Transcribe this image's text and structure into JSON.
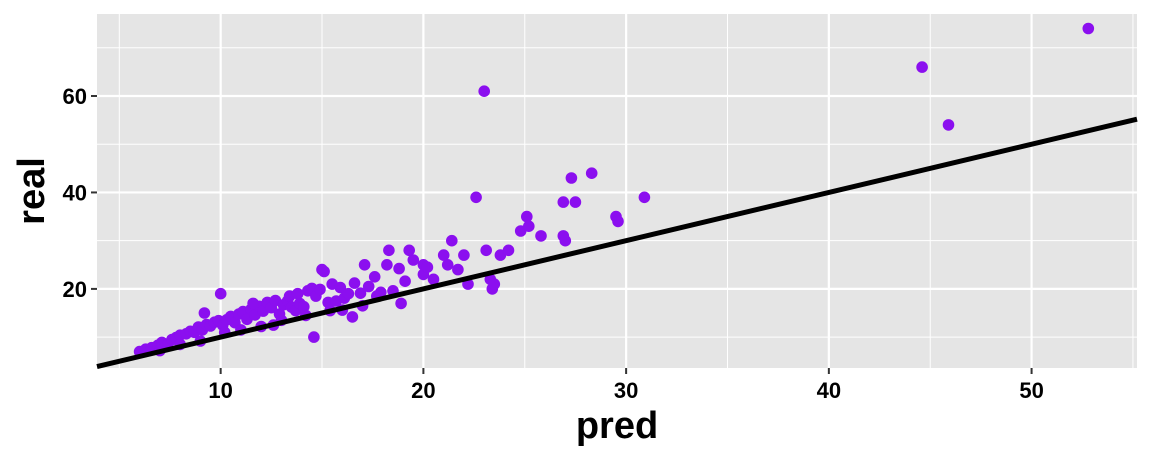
{
  "chart_data": {
    "type": "scatter",
    "xlabel": "pred",
    "ylabel": "real",
    "xlim": [
      3.9,
      55.2
    ],
    "ylim": [
      3.6,
      77.0
    ],
    "x_ticks": [
      10,
      20,
      30,
      40,
      50
    ],
    "y_ticks": [
      20,
      40,
      60
    ],
    "grid": true,
    "colors": {
      "points": "#8B0FEF",
      "line": "#000000",
      "panel": "#E5E5E5",
      "grid": "#FFFFFF"
    },
    "reference_line": {
      "slope": 1,
      "intercept": 0
    },
    "series": [
      {
        "points": [
          [
            6.0,
            7.0
          ],
          [
            6.3,
            7.5
          ],
          [
            6.6,
            7.8
          ],
          [
            6.9,
            8.3
          ],
          [
            7.1,
            8.9
          ],
          [
            7.4,
            8.6
          ],
          [
            7.6,
            9.5
          ],
          [
            7.8,
            9.9
          ],
          [
            8.0,
            10.4
          ],
          [
            8.3,
            10.7
          ],
          [
            8.5,
            11.2
          ],
          [
            8.7,
            11.0
          ],
          [
            8.9,
            12.1
          ],
          [
            9.1,
            11.5
          ],
          [
            9.3,
            12.6
          ],
          [
            9.5,
            12.3
          ],
          [
            9.7,
            13.1
          ],
          [
            9.9,
            13.4
          ],
          [
            10.1,
            12.5
          ],
          [
            10.3,
            13.6
          ],
          [
            10.5,
            14.3
          ],
          [
            10.7,
            13.0
          ],
          [
            10.9,
            14.8
          ],
          [
            11.1,
            15.3
          ],
          [
            11.3,
            13.7
          ],
          [
            11.5,
            15.8
          ],
          [
            11.7,
            14.6
          ],
          [
            11.9,
            16.4
          ],
          [
            12.1,
            15.4
          ],
          [
            12.3,
            17.2
          ],
          [
            12.5,
            16.1
          ],
          [
            12.7,
            17.6
          ],
          [
            12.9,
            14.8
          ],
          [
            13.1,
            16.7
          ],
          [
            13.3,
            17.5
          ],
          [
            13.5,
            16.2
          ],
          [
            13.7,
            15.5
          ],
          [
            13.9,
            17.0
          ],
          [
            14.1,
            16.3
          ],
          [
            14.3,
            19.6
          ],
          [
            14.5,
            20.1
          ],
          [
            14.7,
            18.5
          ],
          [
            14.9,
            19.9
          ],
          [
            15.1,
            23.6
          ],
          [
            15.3,
            17.2
          ],
          [
            15.5,
            21.0
          ],
          [
            15.7,
            17.5
          ],
          [
            15.9,
            20.3
          ],
          [
            16.1,
            18.1
          ],
          [
            16.3,
            19.0
          ],
          [
            16.6,
            21.2
          ],
          [
            16.9,
            19.1
          ],
          [
            17.1,
            25.0
          ],
          [
            17.3,
            20.5
          ],
          [
            17.6,
            22.5
          ],
          [
            17.9,
            19.3
          ],
          [
            18.2,
            25.0
          ],
          [
            18.5,
            19.6
          ],
          [
            18.8,
            24.2
          ],
          [
            19.1,
            21.6
          ],
          [
            19.5,
            26.0
          ],
          [
            20.0,
            25.0
          ],
          [
            20.5,
            22.0
          ],
          [
            7.0,
            7.2
          ],
          [
            8.0,
            8.5
          ],
          [
            9.0,
            9.2
          ],
          [
            9.2,
            15.0
          ],
          [
            10.0,
            19.0
          ],
          [
            10.2,
            11.0
          ],
          [
            11.0,
            11.5
          ],
          [
            11.6,
            17.0
          ],
          [
            12.0,
            12.2
          ],
          [
            12.6,
            12.5
          ],
          [
            13.0,
            13.5
          ],
          [
            13.4,
            18.5
          ],
          [
            13.8,
            19.0
          ],
          [
            14.2,
            14.5
          ],
          [
            14.6,
            10.0
          ],
          [
            15.0,
            24.0
          ],
          [
            15.4,
            15.5
          ],
          [
            16.0,
            15.6
          ],
          [
            16.5,
            14.2
          ],
          [
            17.0,
            16.5
          ],
          [
            17.7,
            18.5
          ],
          [
            18.3,
            28.0
          ],
          [
            18.9,
            17.0
          ],
          [
            19.3,
            28.0
          ],
          [
            20.0,
            23.0
          ],
          [
            20.2,
            24.5
          ],
          [
            21.0,
            27.0
          ],
          [
            21.2,
            25.0
          ],
          [
            21.4,
            30.0
          ],
          [
            21.7,
            24.0
          ],
          [
            22.0,
            27.0
          ],
          [
            22.2,
            21.0
          ],
          [
            22.6,
            39.0
          ],
          [
            23.0,
            61.0
          ],
          [
            23.1,
            28.0
          ],
          [
            23.3,
            22.0
          ],
          [
            23.4,
            20.0
          ],
          [
            23.5,
            21.0
          ],
          [
            23.8,
            27.0
          ],
          [
            24.2,
            28.0
          ],
          [
            24.8,
            32.0
          ],
          [
            25.1,
            35.0
          ],
          [
            25.2,
            33.0
          ],
          [
            25.8,
            31.0
          ],
          [
            26.9,
            31.0
          ],
          [
            26.9,
            38.0
          ],
          [
            27.0,
            30.0
          ],
          [
            27.3,
            43.0
          ],
          [
            27.5,
            38.0
          ],
          [
            28.3,
            44.0
          ],
          [
            29.5,
            35.0
          ],
          [
            29.6,
            34.0
          ],
          [
            30.9,
            39.0
          ],
          [
            44.6,
            66.0
          ],
          [
            45.9,
            54.0
          ],
          [
            52.8,
            74.0
          ]
        ]
      }
    ]
  }
}
